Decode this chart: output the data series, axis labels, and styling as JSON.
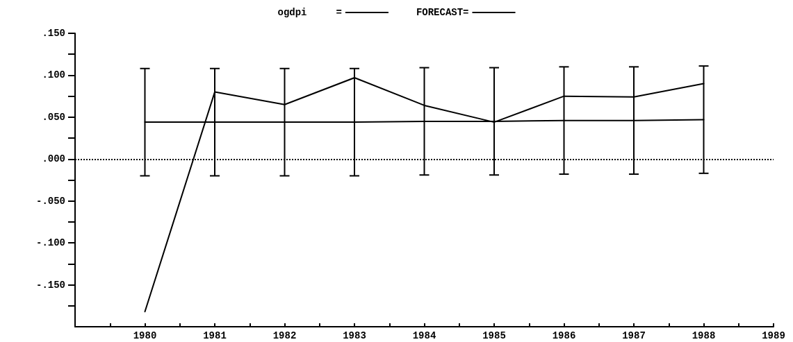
{
  "chart_data": {
    "type": "line",
    "x": [
      1980,
      1981,
      1982,
      1983,
      1984,
      1985,
      1986,
      1987,
      1988
    ],
    "series": [
      {
        "name": "ogdpi     =",
        "color": "#000000",
        "values": [
          -0.182,
          0.08,
          0.065,
          0.097,
          0.064,
          0.044,
          0.075,
          0.074,
          0.09
        ]
      },
      {
        "name": "FORECAST=",
        "color": "#000000",
        "values": [
          0.044,
          0.044,
          0.044,
          0.044,
          0.045,
          0.045,
          0.046,
          0.046,
          0.047
        ],
        "errors": [
          0.064,
          0.064,
          0.064,
          0.064,
          0.064,
          0.064,
          0.064,
          0.064,
          0.064
        ]
      }
    ],
    "xlim": [
      1979,
      1989
    ],
    "xticks": [
      {
        "value": 1979.5,
        "label": null
      },
      1980,
      {
        "value": 1980.5,
        "label": null
      },
      1981,
      {
        "value": 1981.5,
        "label": null
      },
      1982,
      {
        "value": 1982.5,
        "label": null
      },
      1983,
      {
        "value": 1983.5,
        "label": null
      },
      1984,
      {
        "value": 1984.5,
        "label": null
      },
      1985,
      {
        "value": 1985.5,
        "label": null
      },
      1986,
      {
        "value": 1986.5,
        "label": null
      },
      1987,
      {
        "value": 1987.5,
        "label": null
      },
      1988,
      {
        "value": 1988.5,
        "label": null
      },
      1989
    ],
    "ylim": [
      -0.2,
      0.15
    ],
    "yticks": [
      {
        "value": -0.175,
        "label": null
      },
      {
        "value": -0.15,
        "label": "-.150"
      },
      {
        "value": -0.125,
        "label": null
      },
      {
        "value": -0.1,
        "label": "-.100"
      },
      {
        "value": -0.075,
        "label": null
      },
      {
        "value": -0.05,
        "label": "-.050"
      },
      {
        "value": -0.025,
        "label": null
      },
      {
        "value": 0,
        "label": ".000"
      },
      {
        "value": 0.025,
        "label": null
      },
      {
        "value": 0.05,
        "label": ".050"
      },
      {
        "value": 0.075,
        "label": null
      },
      {
        "value": 0.1,
        "label": ".100"
      },
      {
        "value": 0.125,
        "label": null
      },
      {
        "value": 0.15,
        "label": ".150"
      }
    ],
    "ref_lines": [
      {
        "axis": "y",
        "value": 0,
        "line_style": "dotted",
        "color": "#000000"
      }
    ],
    "legend": "top",
    "marker": "none",
    "line_style": "solid",
    "grid": false
  }
}
